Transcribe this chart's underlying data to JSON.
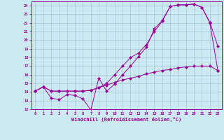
{
  "xlabel": "Windchill (Refroidissement éolien,°C)",
  "bg_color": "#cce8f0",
  "line_color": "#990099",
  "grid_color": "#aaccdd",
  "xlim": [
    -0.5,
    23.5
  ],
  "ylim": [
    12,
    24.5
  ],
  "xticks": [
    0,
    1,
    2,
    3,
    4,
    5,
    6,
    7,
    8,
    9,
    10,
    11,
    12,
    13,
    14,
    15,
    16,
    17,
    18,
    19,
    20,
    21,
    22,
    23
  ],
  "yticks": [
    12,
    13,
    14,
    15,
    16,
    17,
    18,
    19,
    20,
    21,
    22,
    23,
    24
  ],
  "line1_x": [
    0,
    1,
    2,
    3,
    4,
    5,
    6,
    7,
    8,
    9,
    10,
    11,
    12,
    13,
    14,
    15,
    16,
    17,
    18,
    19,
    20,
    21,
    22,
    23
  ],
  "line1_y": [
    14.1,
    14.6,
    13.3,
    13.1,
    13.7,
    13.6,
    13.2,
    11.9,
    15.6,
    14.1,
    14.9,
    16.0,
    17.0,
    18.1,
    19.2,
    21.3,
    22.3,
    23.9,
    24.1,
    24.1,
    24.2,
    23.8,
    22.1,
    19.3
  ],
  "line2_x": [
    0,
    1,
    2,
    3,
    4,
    5,
    6,
    7,
    8,
    9,
    10,
    11,
    12,
    13,
    14,
    15,
    16,
    17,
    18,
    19,
    20,
    21,
    22,
    23
  ],
  "line2_y": [
    14.1,
    14.6,
    14.1,
    14.1,
    14.1,
    14.1,
    14.1,
    14.2,
    14.5,
    14.8,
    15.1,
    15.4,
    15.6,
    15.8,
    16.1,
    16.3,
    16.5,
    16.6,
    16.8,
    16.9,
    17.0,
    17.0,
    17.0,
    16.5
  ],
  "line3_x": [
    0,
    1,
    2,
    3,
    4,
    5,
    6,
    7,
    8,
    9,
    10,
    11,
    12,
    13,
    14,
    15,
    16,
    17,
    18,
    19,
    20,
    21,
    22,
    23
  ],
  "line3_y": [
    14.1,
    14.6,
    14.1,
    14.1,
    14.1,
    14.1,
    14.1,
    14.2,
    14.5,
    15.0,
    16.0,
    17.0,
    18.0,
    18.5,
    19.5,
    21.0,
    22.2,
    23.9,
    24.1,
    24.1,
    24.2,
    23.8,
    22.0,
    16.5
  ]
}
